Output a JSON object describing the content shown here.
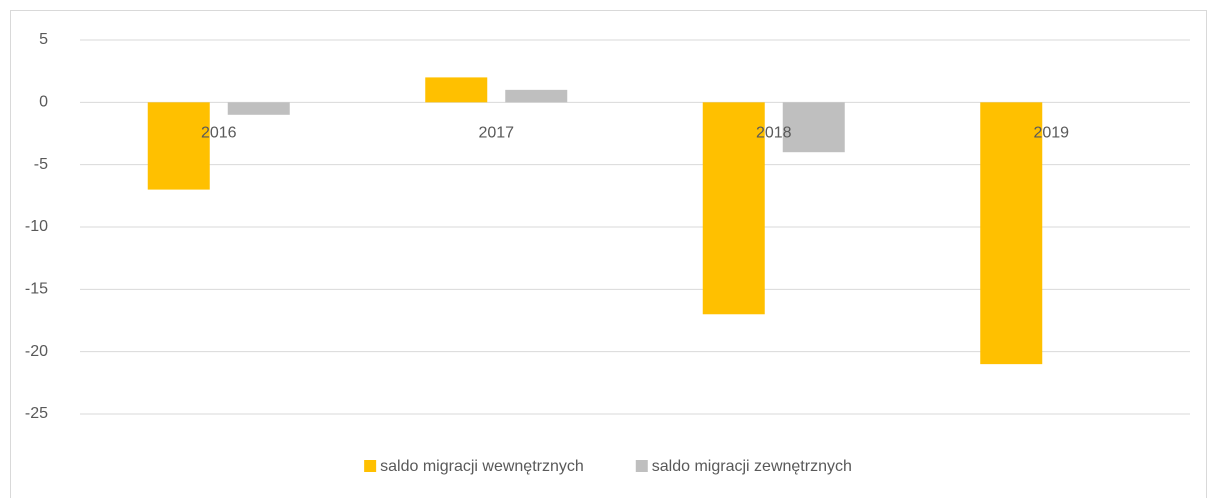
{
  "chart_data": {
    "type": "bar",
    "categories": [
      "2016",
      "2017",
      "2018",
      "2019"
    ],
    "series": [
      {
        "name": "saldo migracji wewnętrznych",
        "color": "#ffc000",
        "values": [
          -7,
          2,
          -17,
          -21
        ]
      },
      {
        "name": "saldo migracji zewnętrznych",
        "color": "#bfbfbf",
        "values": [
          -1,
          1,
          -4,
          0
        ]
      }
    ],
    "ylim": [
      -25,
      5
    ],
    "yticks": [
      -25,
      -20,
      -15,
      -10,
      -5,
      0,
      5
    ],
    "grid": true,
    "legend": "bottom"
  }
}
